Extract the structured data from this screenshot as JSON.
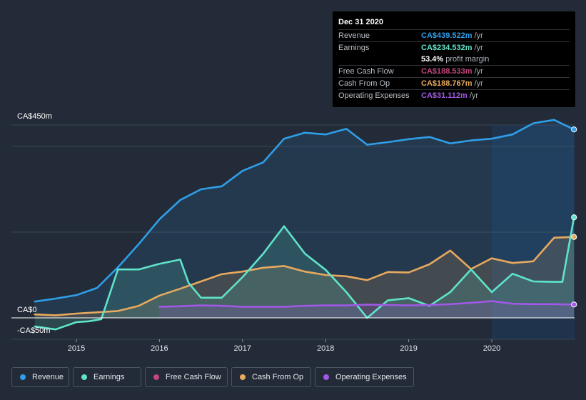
{
  "chart_data": {
    "type": "area",
    "y_axis_labels": {
      "top": "CA$450m",
      "zero": "CA$0",
      "bottom": "-CA$50m"
    },
    "ylim": [
      -50,
      450
    ],
    "x_ticks": [
      2015,
      2016,
      2017,
      2018,
      2019,
      2020
    ],
    "x_tick_labels": [
      "2015",
      "2016",
      "2017",
      "2018",
      "2019",
      "2020"
    ],
    "highlight_start": 2020.0,
    "series": [
      {
        "key": "revenue",
        "name": "Revenue",
        "color": "#2f9ee8",
        "x": [
          2014.5,
          2014.75,
          2015.0,
          2015.25,
          2015.5,
          2015.75,
          2016.0,
          2016.25,
          2016.5,
          2016.75,
          2017.0,
          2017.25,
          2017.5,
          2017.75,
          2018.0,
          2018.25,
          2018.5,
          2018.75,
          2019.0,
          2019.25,
          2019.5,
          2019.75,
          2020.0,
          2020.25,
          2020.5,
          2020.75,
          2020.99
        ],
        "values": [
          38,
          45,
          53,
          70,
          118,
          172,
          230,
          275,
          300,
          307,
          343,
          363,
          418,
          432,
          428,
          441,
          404,
          410,
          417,
          422,
          407,
          414,
          418,
          428,
          454,
          462,
          439.522
        ]
      },
      {
        "key": "earnings",
        "name": "Earnings",
        "color": "#5fe3c9",
        "x": [
          2014.5,
          2014.75,
          2015.0,
          2015.15,
          2015.3,
          2015.5,
          2015.75,
          2016.0,
          2016.25,
          2016.35,
          2016.5,
          2016.75,
          2017.0,
          2017.25,
          2017.5,
          2017.75,
          2018.0,
          2018.25,
          2018.5,
          2018.75,
          2019.0,
          2019.25,
          2019.5,
          2019.75,
          2020.0,
          2020.25,
          2020.5,
          2020.75,
          2020.85,
          2020.99
        ],
        "values": [
          -20,
          -27,
          -10,
          -8,
          -3,
          113,
          113,
          126,
          136,
          82,
          47,
          47,
          95,
          150,
          214,
          150,
          112,
          60,
          0,
          41,
          46,
          28,
          60,
          113,
          60,
          103,
          85,
          84,
          84,
          234.532
        ]
      },
      {
        "key": "free_cash_flow",
        "name": "Free Cash Flow",
        "color": "#c2477e",
        "x": [],
        "values": [],
        "current": 188.533
      },
      {
        "key": "cash_from_op",
        "name": "Cash From Op",
        "color": "#e7a95d",
        "x": [
          2014.5,
          2014.75,
          2015.0,
          2015.25,
          2015.5,
          2015.75,
          2016.0,
          2016.25,
          2016.5,
          2016.75,
          2017.0,
          2017.25,
          2017.5,
          2017.75,
          2018.0,
          2018.25,
          2018.5,
          2018.75,
          2019.0,
          2019.25,
          2019.5,
          2019.75,
          2020.0,
          2020.25,
          2020.5,
          2020.75,
          2020.99
        ],
        "values": [
          8,
          6,
          10,
          13,
          16,
          28,
          52,
          68,
          85,
          102,
          108,
          117,
          121,
          108,
          100,
          97,
          88,
          107,
          106,
          125,
          157,
          114,
          139,
          128,
          132,
          187,
          188.767
        ]
      },
      {
        "key": "operating_expenses",
        "name": "Operating Expenses",
        "color": "#a158e6",
        "x": [
          2016.0,
          2016.25,
          2016.5,
          2016.75,
          2017.0,
          2017.25,
          2017.5,
          2017.75,
          2018.0,
          2018.25,
          2018.5,
          2018.75,
          2019.0,
          2019.25,
          2019.5,
          2019.75,
          2020.0,
          2020.25,
          2020.5,
          2020.75,
          2020.99
        ],
        "values": [
          26,
          27,
          29,
          28,
          26,
          26,
          26,
          28,
          29,
          29,
          31,
          30,
          29,
          30,
          32,
          35,
          39,
          33,
          32,
          32,
          31.112
        ]
      }
    ]
  },
  "tooltip": {
    "date": "Dec 31 2020",
    "rows": [
      {
        "label": "Revenue",
        "value": "CA$439.522m",
        "unit": "/yr",
        "color": "#2f9ee8"
      },
      {
        "label": "Earnings",
        "value": "CA$234.532m",
        "unit": "/yr",
        "color": "#5fe3c9"
      },
      {
        "label": "",
        "value": "53.4%",
        "unit": "profit margin",
        "color": "#ffffff"
      },
      {
        "label": "Free Cash Flow",
        "value": "CA$188.533m",
        "unit": "/yr",
        "color": "#c2477e"
      },
      {
        "label": "Cash From Op",
        "value": "CA$188.767m",
        "unit": "/yr",
        "color": "#e7a95d"
      },
      {
        "label": "Operating Expenses",
        "value": "CA$31.112m",
        "unit": "/yr",
        "color": "#a158e6"
      }
    ]
  },
  "legend": [
    {
      "key": "revenue",
      "label": "Revenue",
      "color": "#2f9ee8"
    },
    {
      "key": "earnings",
      "label": "Earnings",
      "color": "#5fe3c9"
    },
    {
      "key": "free_cash_flow",
      "label": "Free Cash Flow",
      "color": "#c2477e"
    },
    {
      "key": "cash_from_op",
      "label": "Cash From Op",
      "color": "#e7a95d"
    },
    {
      "key": "operating_expenses",
      "label": "Operating Expenses",
      "color": "#a158e6"
    }
  ]
}
